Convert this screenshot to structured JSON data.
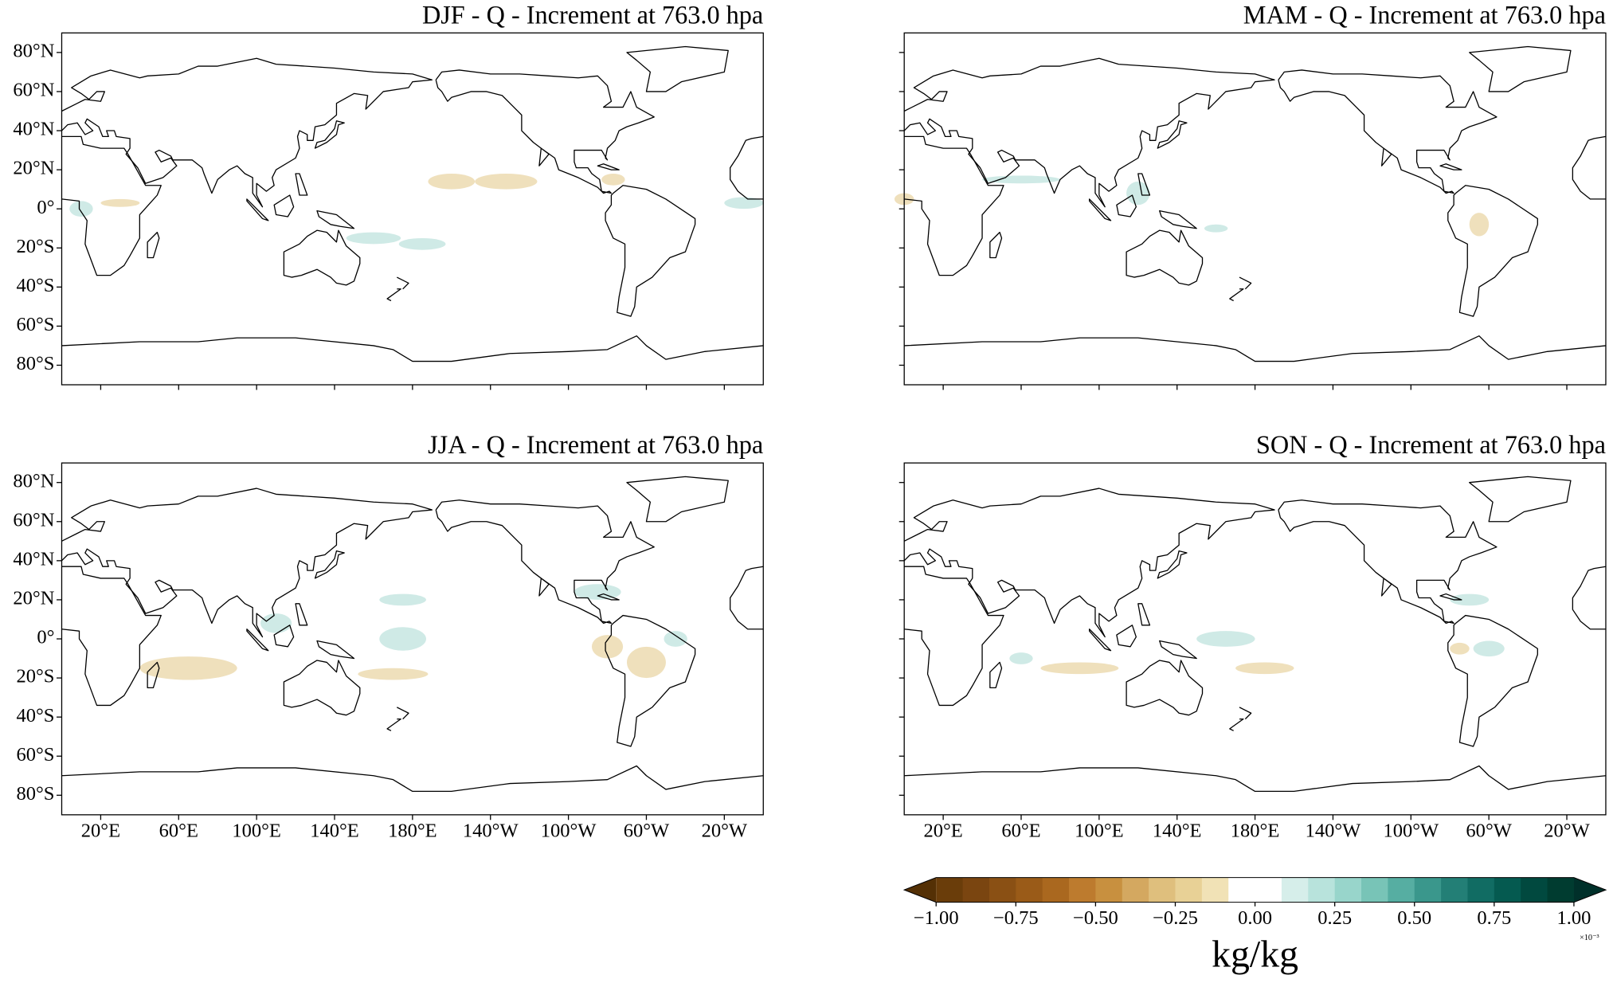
{
  "panels": [
    {
      "title": "DJF - Q - Increment at 763.0 hpa"
    },
    {
      "title": "MAM - Q - Increment at 763.0 hpa"
    },
    {
      "title": "JJA - Q - Increment at 763.0 hpa"
    },
    {
      "title": "SON - Q - Increment at 763.0 hpa"
    }
  ],
  "lon_range": [
    0,
    360
  ],
  "lat_range": [
    -90,
    90
  ],
  "lat_ticks": [
    {
      "value": 80,
      "label": "80°N"
    },
    {
      "value": 60,
      "label": "60°N"
    },
    {
      "value": 40,
      "label": "40°N"
    },
    {
      "value": 20,
      "label": "20°N"
    },
    {
      "value": 0,
      "label": "0°"
    },
    {
      "value": -20,
      "label": "20°S"
    },
    {
      "value": -40,
      "label": "40°S"
    },
    {
      "value": -60,
      "label": "60°S"
    },
    {
      "value": -80,
      "label": "80°S"
    }
  ],
  "lon_ticks": [
    {
      "value": 20,
      "label": "20°E"
    },
    {
      "value": 60,
      "label": "60°E"
    },
    {
      "value": 100,
      "label": "100°E"
    },
    {
      "value": 140,
      "label": "140°E"
    },
    {
      "value": 180,
      "label": "180°E"
    },
    {
      "value": 220,
      "label": "140°W"
    },
    {
      "value": 260,
      "label": "100°W"
    },
    {
      "value": 300,
      "label": "60°W"
    },
    {
      "value": 340,
      "label": "20°W"
    }
  ],
  "colorbar": {
    "range": [
      -1,
      1
    ],
    "ticks": [
      {
        "value": -1,
        "label": "−1.00"
      },
      {
        "value": -0.75,
        "label": "−0.75"
      },
      {
        "value": -0.5,
        "label": "−0.50"
      },
      {
        "value": -0.25,
        "label": "−0.25"
      },
      {
        "value": 0,
        "label": "0.00"
      },
      {
        "value": 0.25,
        "label": "0.25"
      },
      {
        "value": 0.5,
        "label": "0.50"
      },
      {
        "value": 0.75,
        "label": "0.75"
      },
      {
        "value": 1,
        "label": "1.00"
      }
    ],
    "colors": [
      "#6a3d0a",
      "#7a4510",
      "#8a5014",
      "#9a5b18",
      "#aa681f",
      "#bd7b2e",
      "#c8903f",
      "#d4a860",
      "#dfbf7d",
      "#e8d196",
      "#f1e2b6",
      "#ffffff",
      "#ffffff",
      "#d6eeea",
      "#b8e3dc",
      "#98d5cb",
      "#78c4b7",
      "#56aea2",
      "#3a978c",
      "#237f76",
      "#116c63",
      "#055a50",
      "#01493f",
      "#003c30"
    ],
    "under": "#543005",
    "over": "#00302a",
    "label": "kg/kg",
    "offset": "×10⁻³"
  }
}
